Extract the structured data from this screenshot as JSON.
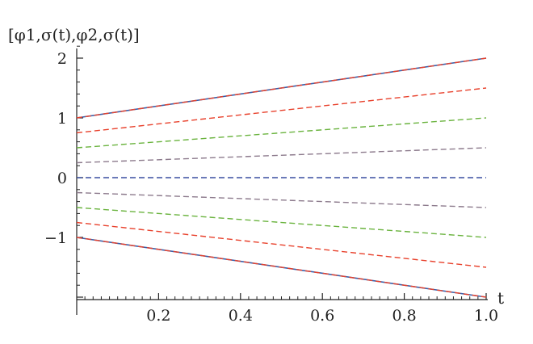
{
  "chart_data": {
    "type": "line",
    "title": "",
    "ylabel": "[φ1,σ(t),φ2,σ(t)]",
    "xlabel": "t",
    "xlim": [
      0,
      1
    ],
    "ylim": [
      -2,
      2.2
    ],
    "xticks": [
      0.2,
      0.4,
      0.6,
      0.8,
      1.0
    ],
    "xtick_labels": [
      "0.2",
      "0.4",
      "0.6",
      "0.8",
      "1.0"
    ],
    "yticks": [
      -1,
      0,
      1,
      2
    ],
    "ytick_labels": [
      "−1",
      "0",
      "1",
      "2"
    ],
    "grid": false,
    "legend": "none",
    "series": [
      {
        "x": [
          0,
          1
        ],
        "y": [
          1,
          2
        ],
        "color": "#3a5fa8",
        "dash": "solid"
      },
      {
        "x": [
          0,
          1
        ],
        "y": [
          1,
          2
        ],
        "color": "#e8412c",
        "dash": "dashed"
      },
      {
        "x": [
          0,
          1
        ],
        "y": [
          0.75,
          1.5
        ],
        "color": "#e8412c",
        "dash": "dashed"
      },
      {
        "x": [
          0,
          1
        ],
        "y": [
          0.5,
          1.0
        ],
        "color": "#6ab33e",
        "dash": "dashed"
      },
      {
        "x": [
          0,
          1
        ],
        "y": [
          0.25,
          0.5
        ],
        "color": "#8c7a8c",
        "dash": "dashed"
      },
      {
        "x": [
          0,
          1
        ],
        "y": [
          0,
          0
        ],
        "color": "#3a4fa0",
        "dash": "dashed"
      },
      {
        "x": [
          0,
          1
        ],
        "y": [
          -0.25,
          -0.5
        ],
        "color": "#8c7a8c",
        "dash": "dashed"
      },
      {
        "x": [
          0,
          1
        ],
        "y": [
          -0.5,
          -1.0
        ],
        "color": "#6ab33e",
        "dash": "dashed"
      },
      {
        "x": [
          0,
          1
        ],
        "y": [
          -0.75,
          -1.5
        ],
        "color": "#e8412c",
        "dash": "dashed"
      },
      {
        "x": [
          0,
          1
        ],
        "y": [
          -1,
          -2
        ],
        "color": "#3a5fa8",
        "dash": "solid"
      },
      {
        "x": [
          0,
          1
        ],
        "y": [
          -1,
          -2
        ],
        "color": "#e8412c",
        "dash": "dashed"
      }
    ]
  }
}
